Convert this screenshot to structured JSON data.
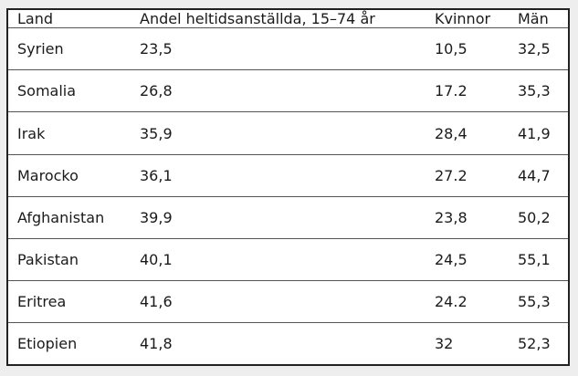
{
  "table": {
    "header": [
      "Land",
      "Andel heltidsanställda, 15–74 år",
      "Kvinnor",
      "Män"
    ],
    "rows": [
      [
        "Syrien",
        "23,5",
        "10,5",
        "32,5"
      ],
      [
        "Somalia",
        "26,8",
        "17.2",
        "35,3"
      ],
      [
        "Irak",
        "35,9",
        "28,4",
        "41,9"
      ],
      [
        "Marocko",
        "36,1",
        "27.2",
        "44,7"
      ],
      [
        "Afghanistan",
        "39,9",
        "23,8",
        "50,2"
      ],
      [
        "Pakistan",
        "40,1",
        "24,5",
        "55,1"
      ],
      [
        "Eritrea",
        "41,6",
        "24.2",
        "55,3"
      ],
      [
        "Etiopien",
        "41,8",
        "32",
        "52,3"
      ]
    ]
  }
}
